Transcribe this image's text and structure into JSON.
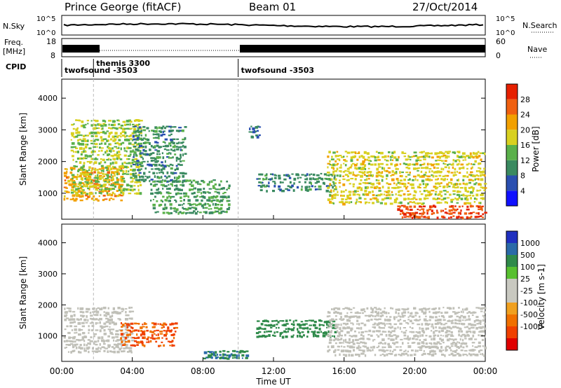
{
  "header": {
    "station": "Prince George (fitACF)",
    "beam": "Beam 01",
    "date": "27/Oct/2014"
  },
  "strips": {
    "nsky": {
      "label": "N.Sky",
      "tick_top": "10^5",
      "tick_bottom": "10^0"
    },
    "nsearch": {
      "label": "N.Search",
      "tick_top": "10^5",
      "tick_bottom": "10^0"
    },
    "freq": {
      "label_line1": "Freq.",
      "label_line2": "[MHz]",
      "tick_top": "18",
      "tick_bottom": "8"
    },
    "nave": {
      "label": "Nave",
      "tick_top": "60",
      "tick_bottom": "0"
    },
    "cpid": {
      "label": "CPID",
      "segments": [
        {
          "name": "twofsound -3503",
          "start_h": 0,
          "end_h": 1.8
        },
        {
          "name": "themis 3300",
          "start_h": 1.8,
          "end_h": 10.0
        },
        {
          "name": "twofsound -3503",
          "start_h": 10.0,
          "end_h": 24
        }
      ]
    }
  },
  "colors": {
    "power_scale": [
      "#1010ff",
      "#2a4fb0",
      "#3a8a60",
      "#5ab04a",
      "#d8d020",
      "#f2a000",
      "#f06010",
      "#e62000"
    ],
    "velocity_scale": [
      "#2030c0",
      "#2a6aa8",
      "#2f8a4a",
      "#58c030",
      "#c8c8c0",
      "#c8c8c0",
      "#f0a020",
      "#f07000",
      "#f04000",
      "#e00000"
    ],
    "ground_scatter": "#c0c0b8"
  },
  "x_axis": {
    "title": "Time UT",
    "ticks": [
      "00:00",
      "04:00",
      "08:00",
      "12:00",
      "16:00",
      "20:00",
      "00:00"
    ]
  },
  "chart_data": [
    {
      "type": "heatmap",
      "panel": "power",
      "ylabel": "Slant Range [km]",
      "yticks": [
        "1000",
        "2000",
        "3000",
        "4000"
      ],
      "ylim": [
        180,
        4600
      ],
      "xlim_hours": [
        0,
        24
      ],
      "colorbar_label": "Power [dB]",
      "colorbar_ticks": [
        "4",
        "8",
        "12",
        "16",
        "20",
        "24",
        "28"
      ],
      "colorbar_range": [
        0,
        32
      ],
      "echo_regions": [
        {
          "t": [
            0.1,
            3.5
          ],
          "range": [
            800,
            1900
          ],
          "value": 22
        },
        {
          "t": [
            0.5,
            4.5
          ],
          "range": [
            1000,
            3400
          ],
          "value": 16
        },
        {
          "t": [
            4.0,
            7.0
          ],
          "range": [
            1400,
            3200
          ],
          "value": 10
        },
        {
          "t": [
            5.0,
            9.5
          ],
          "range": [
            400,
            1500
          ],
          "value": 12
        },
        {
          "t": [
            10.5,
            11.2
          ],
          "range": [
            2800,
            3200
          ],
          "value": 8
        },
        {
          "t": [
            11.0,
            15.5
          ],
          "range": [
            1100,
            1700
          ],
          "value": 10
        },
        {
          "t": [
            15.0,
            24.0
          ],
          "range": [
            700,
            2400
          ],
          "value": 18
        },
        {
          "t": [
            19.0,
            24.0
          ],
          "range": [
            250,
            700
          ],
          "value": 28
        }
      ]
    },
    {
      "type": "heatmap",
      "panel": "velocity",
      "ylabel": "Slant Range [km]",
      "yticks": [
        "1000",
        "2000",
        "3000",
        "4000"
      ],
      "ylim": [
        180,
        4600
      ],
      "xlim_hours": [
        0,
        24
      ],
      "colorbar_label": "Velocity [m s-1]",
      "colorbar_ticks": [
        "1000",
        "500",
        "100",
        "25",
        "-25",
        "-100",
        "-500",
        "-1000"
      ],
      "echo_regions": [
        {
          "t": [
            0.1,
            4.0
          ],
          "range": [
            500,
            2000
          ],
          "value": 0
        },
        {
          "t": [
            3.3,
            6.5
          ],
          "range": [
            700,
            1500
          ],
          "value": -500
        },
        {
          "t": [
            8.0,
            10.5
          ],
          "range": [
            300,
            600
          ],
          "value": 300
        },
        {
          "t": [
            11.0,
            15.5
          ],
          "range": [
            1000,
            1600
          ],
          "value": 200
        },
        {
          "t": [
            15.0,
            24.0
          ],
          "range": [
            400,
            2000
          ],
          "value": 0
        }
      ]
    }
  ]
}
